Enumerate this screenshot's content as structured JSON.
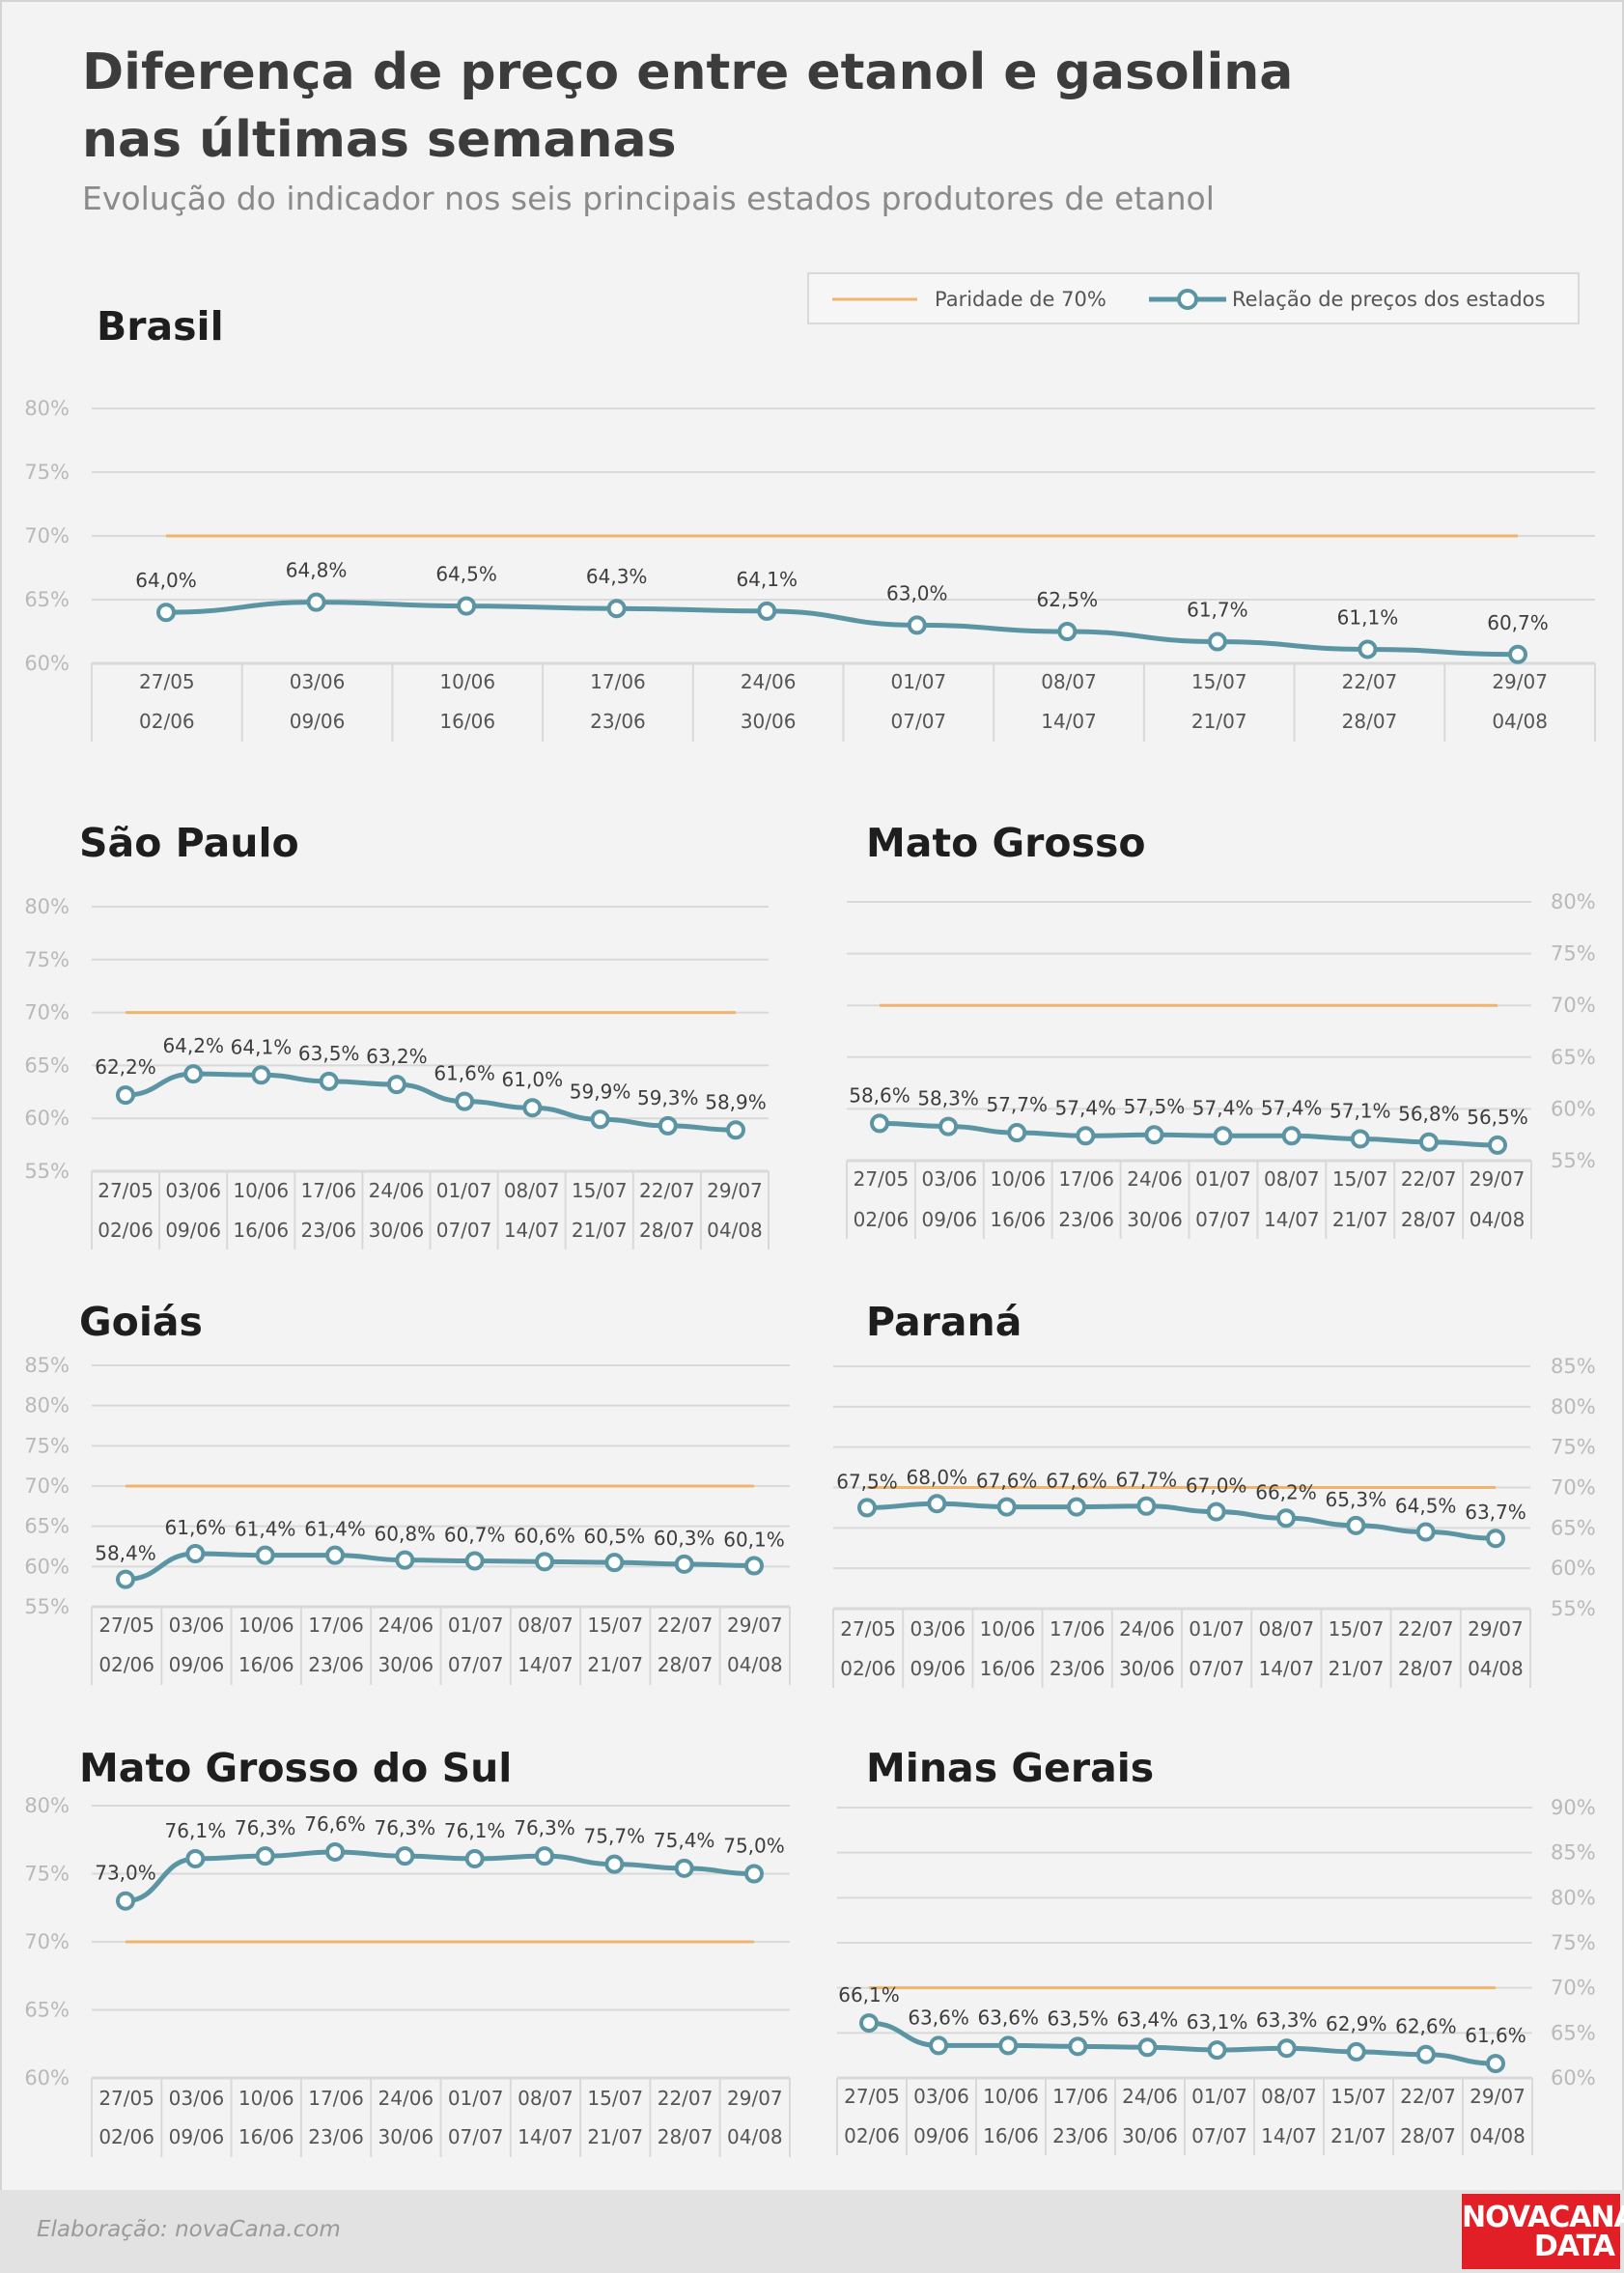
{
  "header": {
    "title": "Diferença de preço entre etanol e gasolina nas últimas semanas",
    "subtitle": "Evolução do indicador nos seis principais estados produtores de etanol"
  },
  "legend": {
    "parity_label": "Paridade de 70%",
    "series_label": "Relação de preços dos estados"
  },
  "colors": {
    "parity": "#f0b56c",
    "series": "#5b95a3",
    "grid": "#d9d9d9",
    "axis_text": "#b9b9b9",
    "value_text": "#3d3d3d",
    "logo": "#e21f26"
  },
  "footer": {
    "credit": "Elaboração: novaCana.com",
    "logo_line1": "NOVACANA",
    "logo_line2": "DATA"
  },
  "chart_data": [
    {
      "type": "line",
      "title": "Brasil",
      "x_start": [
        "27/05",
        "03/06",
        "10/06",
        "17/06",
        "24/06",
        "01/07",
        "08/07",
        "15/07",
        "22/07",
        "29/07"
      ],
      "x_end": [
        "02/06",
        "09/06",
        "16/06",
        "23/06",
        "30/06",
        "07/07",
        "14/07",
        "21/07",
        "28/07",
        "04/08"
      ],
      "values": [
        64.0,
        64.8,
        64.5,
        64.3,
        64.1,
        63.0,
        62.5,
        61.7,
        61.1,
        60.7
      ],
      "labels": [
        "64,0%",
        "64,8%",
        "64,5%",
        "64,3%",
        "64,1%",
        "63,0%",
        "62,5%",
        "61,7%",
        "61,1%",
        "60,7%"
      ],
      "parity": 70,
      "yticks": [
        60,
        65,
        70,
        75,
        80
      ],
      "ytick_labels": [
        "60%",
        "65%",
        "70%",
        "75%",
        "80%"
      ],
      "ylim": [
        60,
        80
      ],
      "y_axis_side": "left"
    },
    {
      "type": "line",
      "title": "São Paulo",
      "x_start": [
        "27/05",
        "03/06",
        "10/06",
        "17/06",
        "24/06",
        "01/07",
        "08/07",
        "15/07",
        "22/07",
        "29/07"
      ],
      "x_end": [
        "02/06",
        "09/06",
        "16/06",
        "23/06",
        "30/06",
        "07/07",
        "14/07",
        "21/07",
        "28/07",
        "04/08"
      ],
      "values": [
        62.2,
        64.2,
        64.1,
        63.5,
        63.2,
        61.6,
        61.0,
        59.9,
        59.3,
        58.9
      ],
      "labels": [
        "62,2%",
        "64,2%",
        "64,1%",
        "63,5%",
        "63,2%",
        "61,6%",
        "61,0%",
        "59,9%",
        "59,3%",
        "58,9%"
      ],
      "parity": 70,
      "yticks": [
        55,
        60,
        65,
        70,
        75,
        80
      ],
      "ytick_labels": [
        "55%",
        "60%",
        "65%",
        "70%",
        "75%",
        "80%"
      ],
      "ylim": [
        55,
        80
      ],
      "y_axis_side": "left"
    },
    {
      "type": "line",
      "title": "Mato Grosso",
      "x_start": [
        "27/05",
        "03/06",
        "10/06",
        "17/06",
        "24/06",
        "01/07",
        "08/07",
        "15/07",
        "22/07",
        "29/07"
      ],
      "x_end": [
        "02/06",
        "09/06",
        "16/06",
        "23/06",
        "30/06",
        "07/07",
        "14/07",
        "21/07",
        "28/07",
        "04/08"
      ],
      "values": [
        58.6,
        58.3,
        57.7,
        57.4,
        57.5,
        57.4,
        57.4,
        57.1,
        56.8,
        56.5
      ],
      "labels": [
        "58,6%",
        "58,3%",
        "57,7%",
        "57,4%",
        "57,5%",
        "57,4%",
        "57,4%",
        "57,1%",
        "56,8%",
        "56,5%"
      ],
      "parity": 70,
      "yticks": [
        55,
        60,
        65,
        70,
        75,
        80
      ],
      "ytick_labels": [
        "55%",
        "60%",
        "65%",
        "70%",
        "75%",
        "80%"
      ],
      "ylim": [
        55,
        80
      ],
      "y_axis_side": "right"
    },
    {
      "type": "line",
      "title": "Goiás",
      "x_start": [
        "27/05",
        "03/06",
        "10/06",
        "17/06",
        "24/06",
        "01/07",
        "08/07",
        "15/07",
        "22/07",
        "29/07"
      ],
      "x_end": [
        "02/06",
        "09/06",
        "16/06",
        "23/06",
        "30/06",
        "07/07",
        "14/07",
        "21/07",
        "28/07",
        "04/08"
      ],
      "values": [
        58.4,
        61.6,
        61.4,
        61.4,
        60.8,
        60.7,
        60.6,
        60.5,
        60.3,
        60.1
      ],
      "labels": [
        "58,4%",
        "61,6%",
        "61,4%",
        "61,4%",
        "60,8%",
        "60,7%",
        "60,6%",
        "60,5%",
        "60,3%",
        "60,1%"
      ],
      "parity": 70,
      "yticks": [
        55,
        60,
        65,
        70,
        75,
        80,
        85
      ],
      "ytick_labels": [
        "55%",
        "60%",
        "65%",
        "70%",
        "75%",
        "80%",
        "85%"
      ],
      "ylim": [
        55,
        85
      ],
      "y_axis_side": "left"
    },
    {
      "type": "line",
      "title": "Paraná",
      "x_start": [
        "27/05",
        "03/06",
        "10/06",
        "17/06",
        "24/06",
        "01/07",
        "08/07",
        "15/07",
        "22/07",
        "29/07"
      ],
      "x_end": [
        "02/06",
        "09/06",
        "16/06",
        "23/06",
        "30/06",
        "07/07",
        "14/07",
        "21/07",
        "28/07",
        "04/08"
      ],
      "values": [
        67.5,
        68.0,
        67.6,
        67.6,
        67.7,
        67.0,
        66.2,
        65.3,
        64.5,
        63.7
      ],
      "labels": [
        "67,5%",
        "68,0%",
        "67,6%",
        "67,6%",
        "67,7%",
        "67,0%",
        "66,2%",
        "65,3%",
        "64,5%",
        "63,7%"
      ],
      "parity": 70,
      "yticks": [
        55,
        60,
        65,
        70,
        75,
        80,
        85
      ],
      "ytick_labels": [
        "55%",
        "60%",
        "65%",
        "70%",
        "75%",
        "80%",
        "85%"
      ],
      "ylim": [
        55,
        85
      ],
      "y_axis_side": "right"
    },
    {
      "type": "line",
      "title": "Mato Grosso do Sul",
      "x_start": [
        "27/05",
        "03/06",
        "10/06",
        "17/06",
        "24/06",
        "01/07",
        "08/07",
        "15/07",
        "22/07",
        "29/07"
      ],
      "x_end": [
        "02/06",
        "09/06",
        "16/06",
        "23/06",
        "30/06",
        "07/07",
        "14/07",
        "21/07",
        "28/07",
        "04/08"
      ],
      "values": [
        73.0,
        76.1,
        76.3,
        76.6,
        76.3,
        76.1,
        76.3,
        75.7,
        75.4,
        75.0
      ],
      "labels": [
        "73,0%",
        "76,1%",
        "76,3%",
        "76,6%",
        "76,3%",
        "76,1%",
        "76,3%",
        "75,7%",
        "75,4%",
        "75,0%"
      ],
      "parity": 70,
      "yticks": [
        60,
        65,
        70,
        75,
        80
      ],
      "ytick_labels": [
        "60%",
        "65%",
        "70%",
        "75%",
        "80%"
      ],
      "ylim": [
        60,
        80
      ],
      "y_axis_side": "left"
    },
    {
      "type": "line",
      "title": "Minas Gerais",
      "x_start": [
        "27/05",
        "03/06",
        "10/06",
        "17/06",
        "24/06",
        "01/07",
        "08/07",
        "15/07",
        "22/07",
        "29/07"
      ],
      "x_end": [
        "02/06",
        "09/06",
        "16/06",
        "23/06",
        "30/06",
        "07/07",
        "14/07",
        "21/07",
        "28/07",
        "04/08"
      ],
      "values": [
        66.1,
        63.6,
        63.6,
        63.5,
        63.4,
        63.1,
        63.3,
        62.9,
        62.6,
        61.6
      ],
      "labels": [
        "66,1%",
        "63,6%",
        "63,6%",
        "63,5%",
        "63,4%",
        "63,1%",
        "63,3%",
        "62,9%",
        "62,6%",
        "61,6%"
      ],
      "parity": 70,
      "yticks": [
        60,
        65,
        70,
        75,
        80,
        85,
        90
      ],
      "ytick_labels": [
        "60%",
        "65%",
        "70%",
        "75%",
        "80%",
        "85%",
        "90%"
      ],
      "ylim": [
        60,
        90
      ],
      "y_axis_side": "right"
    }
  ]
}
